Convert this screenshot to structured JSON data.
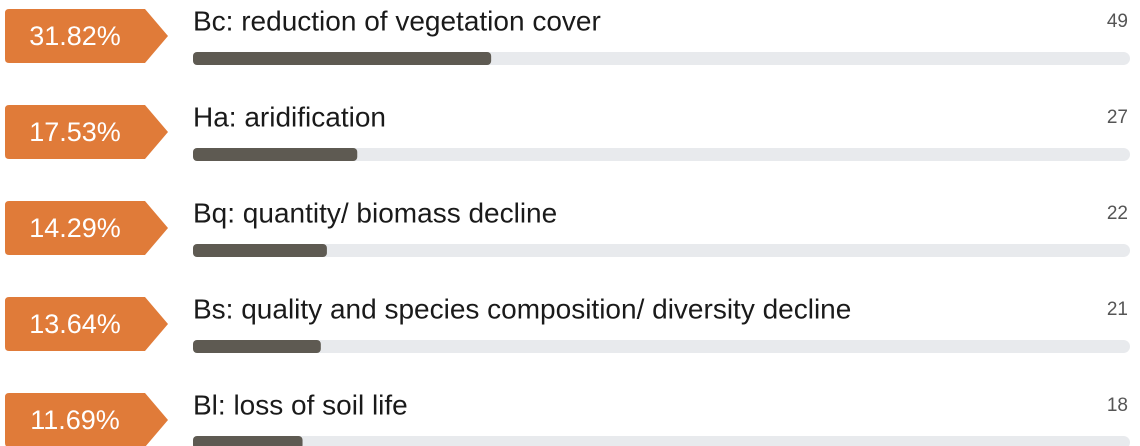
{
  "chart_data": {
    "type": "bar",
    "orientation": "horizontal",
    "categories": [
      "Bc: reduction of vegetation cover",
      "Ha: aridification",
      "Bq: quantity/ biomass decline",
      "Bs: quality and species composition/ diversity decline",
      "Bl: loss of soil life"
    ],
    "values": [
      31.82,
      17.53,
      14.29,
      13.64,
      11.69
    ],
    "value_labels": [
      "31.82%",
      "17.53%",
      "14.29%",
      "13.64%",
      "11.69%"
    ],
    "counts": [
      49,
      27,
      22,
      21,
      18
    ],
    "xlim": [
      0,
      100
    ],
    "color": "#5e5a52",
    "track_color": "#e8eaed",
    "badge_color": "#e07b39"
  }
}
